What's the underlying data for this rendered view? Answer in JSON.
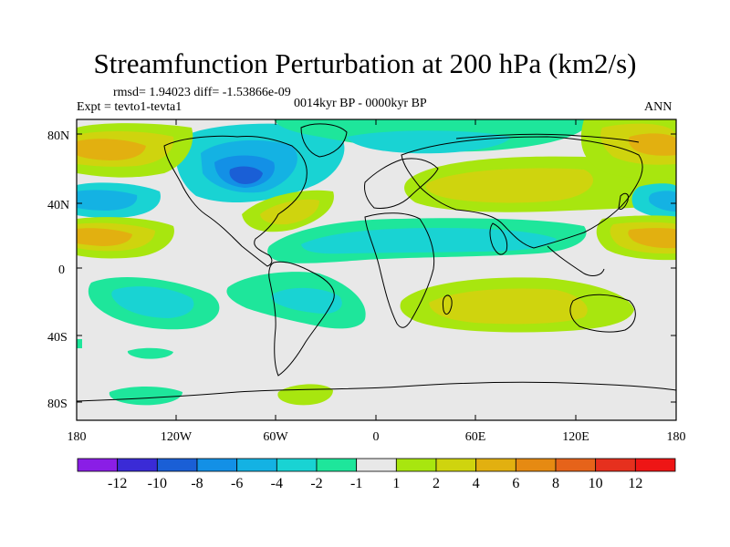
{
  "title": "Streamfunction Perturbation at 200 hPa (km2/s)",
  "stats": "rmsd= 1.94023 diff= -1.53866e-09",
  "experiment": "Expt = tevto1-tevta1",
  "period": "0014kyr BP - 0000kyr BP",
  "season": "ANN",
  "lat_ticks": [
    "80N",
    "40N",
    "0",
    "40S",
    "80S"
  ],
  "lon_ticks": [
    "180",
    "120W",
    "60W",
    "0",
    "60E",
    "120E",
    "180"
  ],
  "colorbar": {
    "labels": [
      "-12",
      "-10",
      "-8",
      "-6",
      "-4",
      "-2",
      "-1",
      "1",
      "2",
      "4",
      "6",
      "8",
      "10",
      "12"
    ],
    "colors": [
      "#8a1ee6",
      "#3a2bd6",
      "#1a5fd6",
      "#1390e6",
      "#14b2e3",
      "#19d3d3",
      "#1ee69b",
      "#e8e8e8",
      "#a8e60f",
      "#cfd40e",
      "#e2b010",
      "#e68a12",
      "#e6631a",
      "#e6301e",
      "#ee1515"
    ]
  },
  "palette": {
    "neutral": "#e8e8e8",
    "pos1": "#a8e60f",
    "pos2": "#cfd40e",
    "pos3": "#e2b010",
    "pos4": "#e68a12",
    "neg1": "#1ee69b",
    "neg2": "#19d3d3",
    "neg3": "#14b2e3",
    "neg4": "#1390e6",
    "neg5": "#1a5fd6"
  }
}
